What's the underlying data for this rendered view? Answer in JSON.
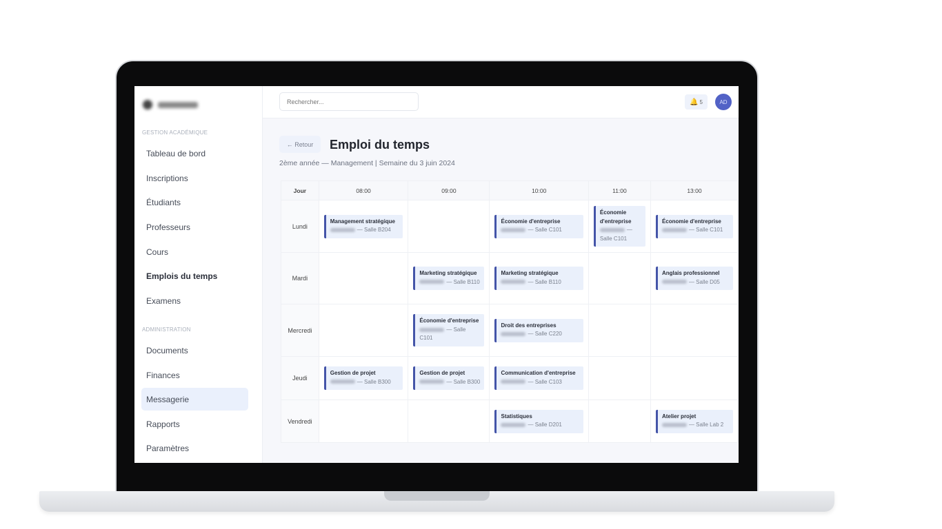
{
  "sidebar": {
    "sections": [
      {
        "label": "GESTION ACADÉMIQUE",
        "items": [
          "Tableau de bord",
          "Inscriptions",
          "Étudiants",
          "Professeurs",
          "Cours",
          "Emplois du temps",
          "Examens"
        ]
      },
      {
        "label": "ADMINISTRATION",
        "items": [
          "Documents",
          "Finances",
          "Messagerie",
          "Rapports",
          "Paramètres"
        ]
      }
    ],
    "active": "Emplois du temps",
    "highlighted": "Messagerie"
  },
  "topbar": {
    "search_placeholder": "Rechercher...",
    "notifications": "5",
    "avatar": "AD",
    "bell_icon": "bell-icon"
  },
  "page": {
    "back_label": "← Retour",
    "title": "Emploi du temps",
    "subtitle": "2ème année — Management | Semaine du 3 juin 2024"
  },
  "colors": {
    "accent": "#4454a8",
    "card_bg": "#eaf0fb",
    "avatar": "#5262c6"
  },
  "schedule": {
    "header": [
      "Jour",
      "08:00",
      "09:00",
      "10:00",
      "11:00",
      "13:00"
    ],
    "rows": [
      {
        "day": "Lundi",
        "cells": [
          {
            "title": "Management stratégique",
            "room": "— Salle B204"
          },
          null,
          {
            "title": "Économie d'entreprise",
            "room": "— Salle C101"
          },
          {
            "title": "Économie d'entreprise",
            "room": "— Salle C101"
          },
          {
            "title": "Économie d'entreprise",
            "room": "— Salle C101"
          }
        ]
      },
      {
        "day": "Mardi",
        "cells": [
          null,
          {
            "title": "Marketing stratégique",
            "room": "— Salle B110"
          },
          {
            "title": "Marketing stratégique",
            "room": "— Salle B110"
          },
          null,
          {
            "title": "Anglais professionnel",
            "room": "— Salle D05"
          }
        ]
      },
      {
        "day": "Mercredi",
        "cells": [
          null,
          {
            "title": "Économie d'entreprise",
            "room": "— Salle C101"
          },
          {
            "title": "Droit des entreprises",
            "room": "— Salle C220"
          },
          null,
          null
        ]
      },
      {
        "day": "Jeudi",
        "cells": [
          {
            "title": "Gestion de projet",
            "room": "— Salle B300"
          },
          {
            "title": "Gestion de projet",
            "room": "— Salle B300"
          },
          {
            "title": "Communication d'entreprise",
            "room": "— Salle C103"
          },
          null,
          null
        ]
      },
      {
        "day": "Vendredi",
        "cells": [
          null,
          null,
          {
            "title": "Statistiques",
            "room": "— Salle D201"
          },
          null,
          {
            "title": "Atelier projet",
            "room": "— Salle Lab 2"
          }
        ]
      }
    ]
  }
}
